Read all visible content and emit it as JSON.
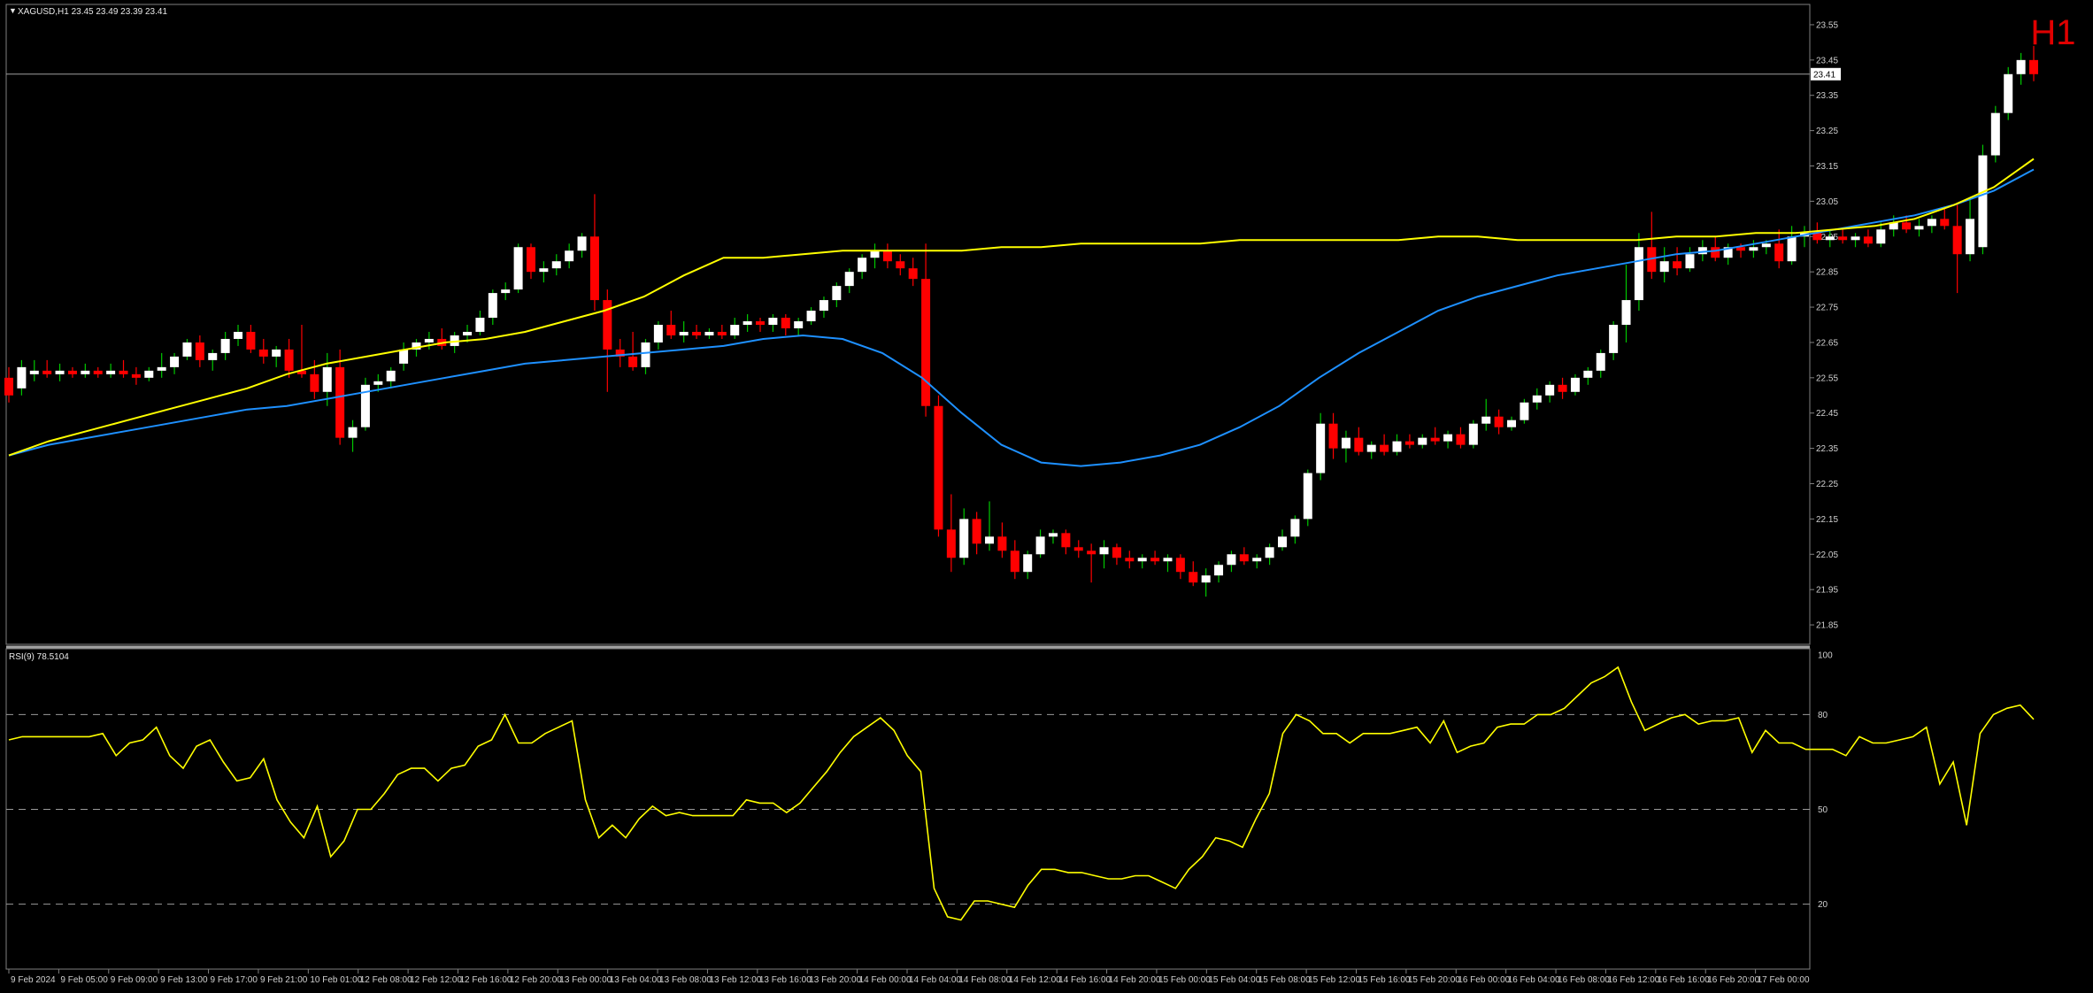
{
  "header": {
    "symbol_line": "XAGUSD,H1  23.45 23.49 23.39 23.41",
    "timeframe_watermark": "H1",
    "current_price_label": "23.41"
  },
  "indicator": {
    "title": "RSI(9) 78.5104"
  },
  "colors": {
    "background": "#000000",
    "bull_candle": "#ffffff",
    "bear_candle": "#ff0000",
    "ma_fast": "#ffff00",
    "ma_slow": "#1e90ff",
    "rsi_line": "#ffff00",
    "wick_up": "#00c800",
    "watermark": "#e00000"
  },
  "chart_data": [
    {
      "type": "candlestick",
      "ylim": [
        21.8,
        23.6
      ],
      "y_ticks": [
        21.85,
        21.95,
        22.05,
        22.15,
        22.25,
        22.35,
        22.45,
        22.55,
        22.65,
        22.75,
        22.85,
        22.95,
        23.05,
        23.15,
        23.25,
        23.35,
        23.45,
        23.55
      ],
      "x_tick_labels": [
        "9 Feb 2024",
        "9 Feb 05:00",
        "9 Feb 09:00",
        "9 Feb 13:00",
        "9 Feb 17:00",
        "9 Feb 21:00",
        "10 Feb 01:00",
        "12 Feb 08:00",
        "12 Feb 12:00",
        "12 Feb 16:00",
        "12 Feb 20:00",
        "13 Feb 00:00",
        "13 Feb 04:00",
        "13 Feb 08:00",
        "13 Feb 12:00",
        "13 Feb 16:00",
        "13 Feb 20:00",
        "14 Feb 00:00",
        "14 Feb 04:00",
        "14 Feb 08:00",
        "14 Feb 12:00",
        "14 Feb 16:00",
        "14 Feb 20:00",
        "15 Feb 00:00",
        "15 Feb 04:00",
        "15 Feb 08:00",
        "15 Feb 12:00",
        "15 Feb 16:00",
        "15 Feb 20:00",
        "16 Feb 00:00",
        "16 Feb 04:00",
        "16 Feb 08:00",
        "16 Feb 12:00",
        "16 Feb 16:00",
        "16 Feb 20:00",
        "17 Feb 00:00"
      ],
      "last_price": 23.41,
      "candles": [
        [
          22.55,
          22.58,
          22.48,
          22.5
        ],
        [
          22.52,
          22.6,
          22.5,
          22.58
        ],
        [
          22.56,
          22.6,
          22.54,
          22.57
        ],
        [
          22.57,
          22.6,
          22.55,
          22.56
        ],
        [
          22.56,
          22.59,
          22.54,
          22.57
        ],
        [
          22.57,
          22.58,
          22.55,
          22.56
        ],
        [
          22.56,
          22.59,
          22.55,
          22.57
        ],
        [
          22.57,
          22.58,
          22.55,
          22.56
        ],
        [
          22.56,
          22.59,
          22.55,
          22.57
        ],
        [
          22.57,
          22.6,
          22.55,
          22.56
        ],
        [
          22.56,
          22.58,
          22.53,
          22.55
        ],
        [
          22.55,
          22.58,
          22.54,
          22.57
        ],
        [
          22.57,
          22.62,
          22.55,
          22.58
        ],
        [
          22.58,
          22.62,
          22.56,
          22.61
        ],
        [
          22.61,
          22.66,
          22.6,
          22.65
        ],
        [
          22.65,
          22.67,
          22.58,
          22.6
        ],
        [
          22.6,
          22.63,
          22.57,
          22.62
        ],
        [
          22.62,
          22.68,
          22.6,
          22.66
        ],
        [
          22.66,
          22.7,
          22.64,
          22.68
        ],
        [
          22.68,
          22.7,
          22.62,
          22.63
        ],
        [
          22.63,
          22.66,
          22.59,
          22.61
        ],
        [
          22.61,
          22.64,
          22.58,
          22.63
        ],
        [
          22.63,
          22.66,
          22.55,
          22.57
        ],
        [
          22.57,
          22.7,
          22.55,
          22.56
        ],
        [
          22.56,
          22.6,
          22.49,
          22.51
        ],
        [
          22.51,
          22.62,
          22.47,
          22.58
        ],
        [
          22.58,
          22.63,
          22.36,
          22.38
        ],
        [
          22.38,
          22.43,
          22.34,
          22.41
        ],
        [
          22.41,
          22.55,
          22.4,
          22.53
        ],
        [
          22.53,
          22.56,
          22.51,
          22.54
        ],
        [
          22.54,
          22.58,
          22.52,
          22.57
        ],
        [
          22.59,
          22.65,
          22.57,
          22.63
        ],
        [
          22.63,
          22.66,
          22.61,
          22.65
        ],
        [
          22.65,
          22.68,
          22.63,
          22.66
        ],
        [
          22.66,
          22.69,
          22.63,
          22.64
        ],
        [
          22.64,
          22.68,
          22.62,
          22.67
        ],
        [
          22.67,
          22.7,
          22.65,
          22.68
        ],
        [
          22.68,
          22.74,
          22.67,
          22.72
        ],
        [
          22.72,
          22.8,
          22.7,
          22.79
        ],
        [
          22.79,
          22.82,
          22.77,
          22.8
        ],
        [
          22.8,
          22.93,
          22.79,
          22.92
        ],
        [
          22.92,
          22.93,
          22.83,
          22.85
        ],
        [
          22.85,
          22.88,
          22.82,
          22.86
        ],
        [
          22.86,
          22.9,
          22.84,
          22.88
        ],
        [
          22.88,
          22.93,
          22.86,
          22.91
        ],
        [
          22.91,
          22.96,
          22.89,
          22.95
        ],
        [
          22.95,
          23.07,
          22.74,
          22.77
        ],
        [
          22.77,
          22.8,
          22.51,
          22.63
        ],
        [
          22.63,
          22.66,
          22.58,
          22.61
        ],
        [
          22.61,
          22.68,
          22.57,
          22.58
        ],
        [
          22.58,
          22.66,
          22.56,
          22.65
        ],
        [
          22.65,
          22.71,
          22.63,
          22.7
        ],
        [
          22.7,
          22.74,
          22.66,
          22.67
        ],
        [
          22.67,
          22.71,
          22.65,
          22.68
        ],
        [
          22.68,
          22.7,
          22.66,
          22.67
        ],
        [
          22.67,
          22.69,
          22.66,
          22.68
        ],
        [
          22.68,
          22.7,
          22.66,
          22.67
        ],
        [
          22.67,
          22.72,
          22.66,
          22.7
        ],
        [
          22.7,
          22.73,
          22.68,
          22.71
        ],
        [
          22.71,
          22.72,
          22.68,
          22.7
        ],
        [
          22.7,
          22.73,
          22.68,
          22.72
        ],
        [
          22.72,
          22.73,
          22.67,
          22.69
        ],
        [
          22.69,
          22.72,
          22.67,
          22.71
        ],
        [
          22.71,
          22.75,
          22.7,
          22.74
        ],
        [
          22.74,
          22.78,
          22.72,
          22.77
        ],
        [
          22.77,
          22.82,
          22.75,
          22.81
        ],
        [
          22.81,
          22.86,
          22.79,
          22.85
        ],
        [
          22.85,
          22.9,
          22.83,
          22.89
        ],
        [
          22.89,
          22.93,
          22.86,
          22.91
        ],
        [
          22.91,
          22.93,
          22.86,
          22.88
        ],
        [
          22.88,
          22.9,
          22.84,
          22.86
        ],
        [
          22.86,
          22.89,
          22.81,
          22.83
        ],
        [
          22.83,
          22.93,
          22.44,
          22.47
        ],
        [
          22.47,
          22.5,
          22.1,
          22.12
        ],
        [
          22.12,
          22.22,
          22.0,
          22.04
        ],
        [
          22.04,
          22.18,
          22.02,
          22.15
        ],
        [
          22.15,
          22.17,
          22.05,
          22.08
        ],
        [
          22.08,
          22.2,
          22.06,
          22.1
        ],
        [
          22.1,
          22.14,
          22.04,
          22.06
        ],
        [
          22.06,
          22.09,
          21.98,
          22.0
        ],
        [
          22.0,
          22.06,
          21.98,
          22.05
        ],
        [
          22.05,
          22.12,
          22.04,
          22.1
        ],
        [
          22.1,
          22.12,
          22.08,
          22.11
        ],
        [
          22.11,
          22.12,
          22.05,
          22.07
        ],
        [
          22.07,
          22.09,
          22.04,
          22.06
        ],
        [
          22.06,
          22.08,
          21.97,
          22.05
        ],
        [
          22.05,
          22.09,
          22.01,
          22.07
        ],
        [
          22.07,
          22.08,
          22.02,
          22.04
        ],
        [
          22.04,
          22.06,
          22.01,
          22.03
        ],
        [
          22.03,
          22.05,
          22.01,
          22.04
        ],
        [
          22.04,
          22.06,
          22.02,
          22.03
        ],
        [
          22.03,
          22.05,
          22.0,
          22.04
        ],
        [
          22.04,
          22.05,
          21.98,
          22.0
        ],
        [
          22.0,
          22.03,
          21.96,
          21.97
        ],
        [
          21.97,
          22.01,
          21.93,
          21.99
        ],
        [
          21.99,
          22.03,
          21.97,
          22.02
        ],
        [
          22.02,
          22.06,
          22.0,
          22.05
        ],
        [
          22.05,
          22.07,
          22.02,
          22.03
        ],
        [
          22.03,
          22.05,
          22.01,
          22.04
        ],
        [
          22.04,
          22.08,
          22.02,
          22.07
        ],
        [
          22.07,
          22.12,
          22.06,
          22.1
        ],
        [
          22.1,
          22.16,
          22.08,
          22.15
        ],
        [
          22.15,
          22.29,
          22.13,
          22.28
        ],
        [
          22.28,
          22.45,
          22.26,
          22.42
        ],
        [
          22.42,
          22.45,
          22.32,
          22.35
        ],
        [
          22.35,
          22.4,
          22.31,
          22.38
        ],
        [
          22.38,
          22.41,
          22.33,
          22.34
        ],
        [
          22.34,
          22.37,
          22.32,
          22.36
        ],
        [
          22.36,
          22.39,
          22.33,
          22.34
        ],
        [
          22.34,
          22.39,
          22.33,
          22.37
        ],
        [
          22.37,
          22.39,
          22.35,
          22.36
        ],
        [
          22.36,
          22.39,
          22.35,
          22.38
        ],
        [
          22.38,
          22.41,
          22.36,
          22.37
        ],
        [
          22.37,
          22.4,
          22.35,
          22.39
        ],
        [
          22.39,
          22.41,
          22.35,
          22.36
        ],
        [
          22.36,
          22.43,
          22.35,
          22.42
        ],
        [
          22.42,
          22.49,
          22.4,
          22.44
        ],
        [
          22.44,
          22.46,
          22.39,
          22.41
        ],
        [
          22.41,
          22.44,
          22.4,
          22.43
        ],
        [
          22.43,
          22.49,
          22.42,
          22.48
        ],
        [
          22.48,
          22.52,
          22.46,
          22.5
        ],
        [
          22.5,
          22.54,
          22.48,
          22.53
        ],
        [
          22.53,
          22.55,
          22.49,
          22.51
        ],
        [
          22.51,
          22.56,
          22.5,
          22.55
        ],
        [
          22.55,
          22.58,
          22.53,
          22.57
        ],
        [
          22.57,
          22.63,
          22.55,
          22.62
        ],
        [
          22.62,
          22.71,
          22.6,
          22.7
        ],
        [
          22.7,
          22.87,
          22.65,
          22.77
        ],
        [
          22.77,
          22.96,
          22.74,
          22.92
        ],
        [
          22.92,
          23.02,
          22.83,
          22.85
        ],
        [
          22.85,
          22.92,
          22.82,
          22.88
        ],
        [
          22.88,
          22.92,
          22.84,
          22.86
        ],
        [
          22.86,
          22.92,
          22.85,
          22.9
        ],
        [
          22.9,
          22.94,
          22.88,
          22.92
        ],
        [
          22.92,
          22.95,
          22.88,
          22.89
        ],
        [
          22.89,
          22.93,
          22.87,
          22.92
        ],
        [
          22.92,
          22.93,
          22.89,
          22.91
        ],
        [
          22.91,
          22.94,
          22.89,
          22.92
        ],
        [
          22.92,
          22.94,
          22.9,
          22.93
        ],
        [
          22.93,
          22.97,
          22.86,
          22.88
        ],
        [
          22.88,
          22.98,
          22.87,
          22.95
        ],
        [
          22.95,
          22.98,
          22.92,
          22.96
        ],
        [
          22.96,
          22.99,
          22.93,
          22.94
        ],
        [
          22.94,
          22.97,
          22.92,
          22.95
        ],
        [
          22.95,
          22.97,
          22.93,
          22.94
        ],
        [
          22.94,
          22.96,
          22.92,
          22.95
        ],
        [
          22.95,
          22.97,
          22.92,
          22.93
        ],
        [
          22.93,
          22.99,
          22.92,
          22.97
        ],
        [
          22.97,
          23.01,
          22.95,
          22.99
        ],
        [
          22.99,
          23.01,
          22.96,
          22.97
        ],
        [
          22.97,
          23.0,
          22.95,
          22.98
        ],
        [
          22.98,
          23.01,
          22.96,
          23.0
        ],
        [
          23.0,
          23.03,
          22.97,
          22.98
        ],
        [
          22.98,
          23.04,
          22.79,
          22.9
        ],
        [
          22.9,
          23.06,
          22.88,
          23.0
        ],
        [
          22.92,
          23.21,
          22.9,
          23.18
        ],
        [
          23.18,
          23.32,
          23.16,
          23.3
        ],
        [
          23.3,
          23.43,
          23.28,
          23.41
        ],
        [
          23.41,
          23.47,
          23.38,
          23.45
        ],
        [
          23.45,
          23.49,
          23.39,
          23.41
        ]
      ],
      "ma_fast_values": [
        22.33,
        22.37,
        22.4,
        22.43,
        22.46,
        22.49,
        22.52,
        22.56,
        22.59,
        22.61,
        22.63,
        22.65,
        22.66,
        22.68,
        22.71,
        22.74,
        22.78,
        22.84,
        22.89,
        22.89,
        22.9,
        22.91,
        22.91,
        22.91,
        22.91,
        22.92,
        22.92,
        22.93,
        22.93,
        22.93,
        22.93,
        22.94,
        22.94,
        22.94,
        22.94,
        22.94,
        22.95,
        22.95,
        22.94,
        22.94,
        22.94,
        22.94,
        22.95,
        22.95,
        22.96,
        22.96,
        22.97,
        22.98,
        23.0,
        23.04,
        23.09,
        23.17
      ],
      "ma_slow_values": [
        22.33,
        22.36,
        22.38,
        22.4,
        22.42,
        22.44,
        22.46,
        22.47,
        22.49,
        22.51,
        22.53,
        22.55,
        22.57,
        22.59,
        22.6,
        22.61,
        22.62,
        22.63,
        22.64,
        22.66,
        22.67,
        22.66,
        22.62,
        22.55,
        22.45,
        22.36,
        22.31,
        22.3,
        22.31,
        22.33,
        22.36,
        22.41,
        22.47,
        22.55,
        22.62,
        22.68,
        22.74,
        22.78,
        22.81,
        22.84,
        22.86,
        22.88,
        22.9,
        22.91,
        22.93,
        22.95,
        22.97,
        22.99,
        23.01,
        23.04,
        23.08,
        23.14
      ]
    },
    {
      "type": "line",
      "title": "RSI(9) 78.5104",
      "ylim": [
        0,
        100
      ],
      "y_ticks": [
        20,
        50,
        80,
        100
      ],
      "levels": [
        20,
        50,
        80
      ],
      "values": [
        72,
        73,
        73,
        73,
        73,
        73,
        73,
        74,
        67,
        71,
        72,
        76,
        67,
        63,
        70,
        72,
        65,
        59,
        60,
        66,
        53,
        46,
        41,
        51,
        35,
        40,
        50,
        50,
        55,
        61,
        63,
        63,
        59,
        63,
        64,
        70,
        72,
        80,
        71,
        71,
        74,
        76,
        78,
        53,
        41,
        45,
        41,
        47,
        51,
        48,
        49,
        48,
        48,
        48,
        48,
        53,
        52,
        52,
        49,
        52,
        57,
        62,
        68,
        73,
        76,
        79,
        75,
        67,
        62,
        25,
        16,
        15,
        21,
        21,
        20,
        19,
        26,
        31,
        31,
        30,
        30,
        29,
        28,
        28,
        29,
        29,
        27,
        25,
        31,
        35,
        41,
        40,
        38,
        47,
        55,
        74,
        80,
        78,
        74,
        74,
        71,
        74,
        74,
        74,
        75,
        76,
        71,
        78,
        68,
        70,
        71,
        76,
        77,
        77,
        80,
        80,
        82,
        86,
        90,
        92,
        95,
        84,
        75,
        77,
        79,
        80,
        77,
        78,
        78,
        79,
        68,
        75,
        71,
        71,
        69,
        69,
        69,
        67,
        73,
        71,
        71,
        72,
        73,
        76,
        58,
        65,
        45,
        74,
        80,
        82,
        83,
        78.5
      ]
    }
  ]
}
